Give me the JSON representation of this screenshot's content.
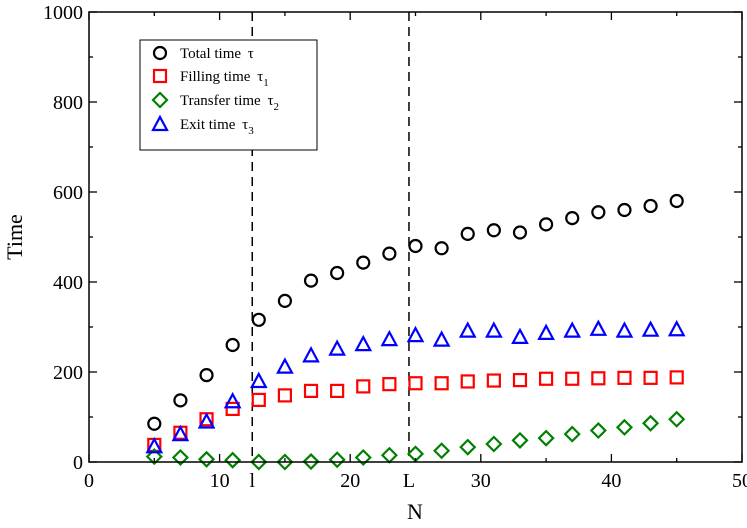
{
  "chart_data": {
    "type": "scatter",
    "xlabel": "N",
    "ylabel": "Time",
    "xlim": [
      0,
      50
    ],
    "ylim": [
      0,
      1000
    ],
    "x_ticks": [
      {
        "value": 0,
        "label": "0"
      },
      {
        "value": 10,
        "label": "10"
      },
      {
        "value": 20,
        "label": "20"
      },
      {
        "value": 30,
        "label": "30"
      },
      {
        "value": 40,
        "label": "40"
      },
      {
        "value": 50,
        "label": "50"
      }
    ],
    "special_x_ticks": [
      {
        "value": 12.5,
        "label": "l"
      },
      {
        "value": 24.5,
        "label": "L"
      }
    ],
    "y_ticks": [
      {
        "value": 0,
        "label": "0"
      },
      {
        "value": 200,
        "label": "200"
      },
      {
        "value": 400,
        "label": "400"
      },
      {
        "value": 600,
        "label": "600"
      },
      {
        "value": 800,
        "label": "800"
      },
      {
        "value": 1000,
        "label": "1000"
      }
    ],
    "vertical_dashed_lines": [
      12.5,
      24.5
    ],
    "grid": false,
    "legend_position": "top-left",
    "x": [
      5,
      7,
      9,
      11,
      13,
      15,
      17,
      19,
      21,
      23,
      25,
      27,
      29,
      31,
      33,
      35,
      37,
      39,
      41,
      43,
      45
    ],
    "series": [
      {
        "name": "Total time",
        "name_symbol": "τ",
        "name_subscript": "",
        "marker": "circle",
        "color": "#000000",
        "values": [
          85,
          137,
          193,
          260,
          316,
          358,
          403,
          420,
          443,
          463,
          480,
          475,
          507,
          515,
          510,
          528,
          542,
          555,
          560,
          569,
          580
        ]
      },
      {
        "name": "Filling time",
        "name_symbol": "τ",
        "name_subscript": "1",
        "marker": "square",
        "color": "#ff0000",
        "values": [
          38,
          65,
          95,
          118,
          138,
          148,
          158,
          158,
          168,
          173,
          175,
          175,
          179,
          181,
          182,
          185,
          185,
          186,
          187,
          187,
          188
        ]
      },
      {
        "name": "Transfer time",
        "name_symbol": "τ",
        "name_subscript": "2",
        "marker": "diamond",
        "color": "#008000",
        "values": [
          12,
          10,
          6,
          4,
          0,
          0,
          1,
          5,
          10,
          15,
          18,
          25,
          33,
          40,
          48,
          53,
          62,
          70,
          77,
          86,
          95
        ]
      },
      {
        "name": "Exit time",
        "name_symbol": "τ",
        "name_subscript": "3",
        "marker": "triangle",
        "color": "#0000ff",
        "values": [
          35,
          62,
          90,
          135,
          180,
          212,
          237,
          252,
          262,
          273,
          282,
          272,
          292,
          292,
          278,
          287,
          292,
          296,
          292,
          294,
          295
        ]
      }
    ]
  }
}
